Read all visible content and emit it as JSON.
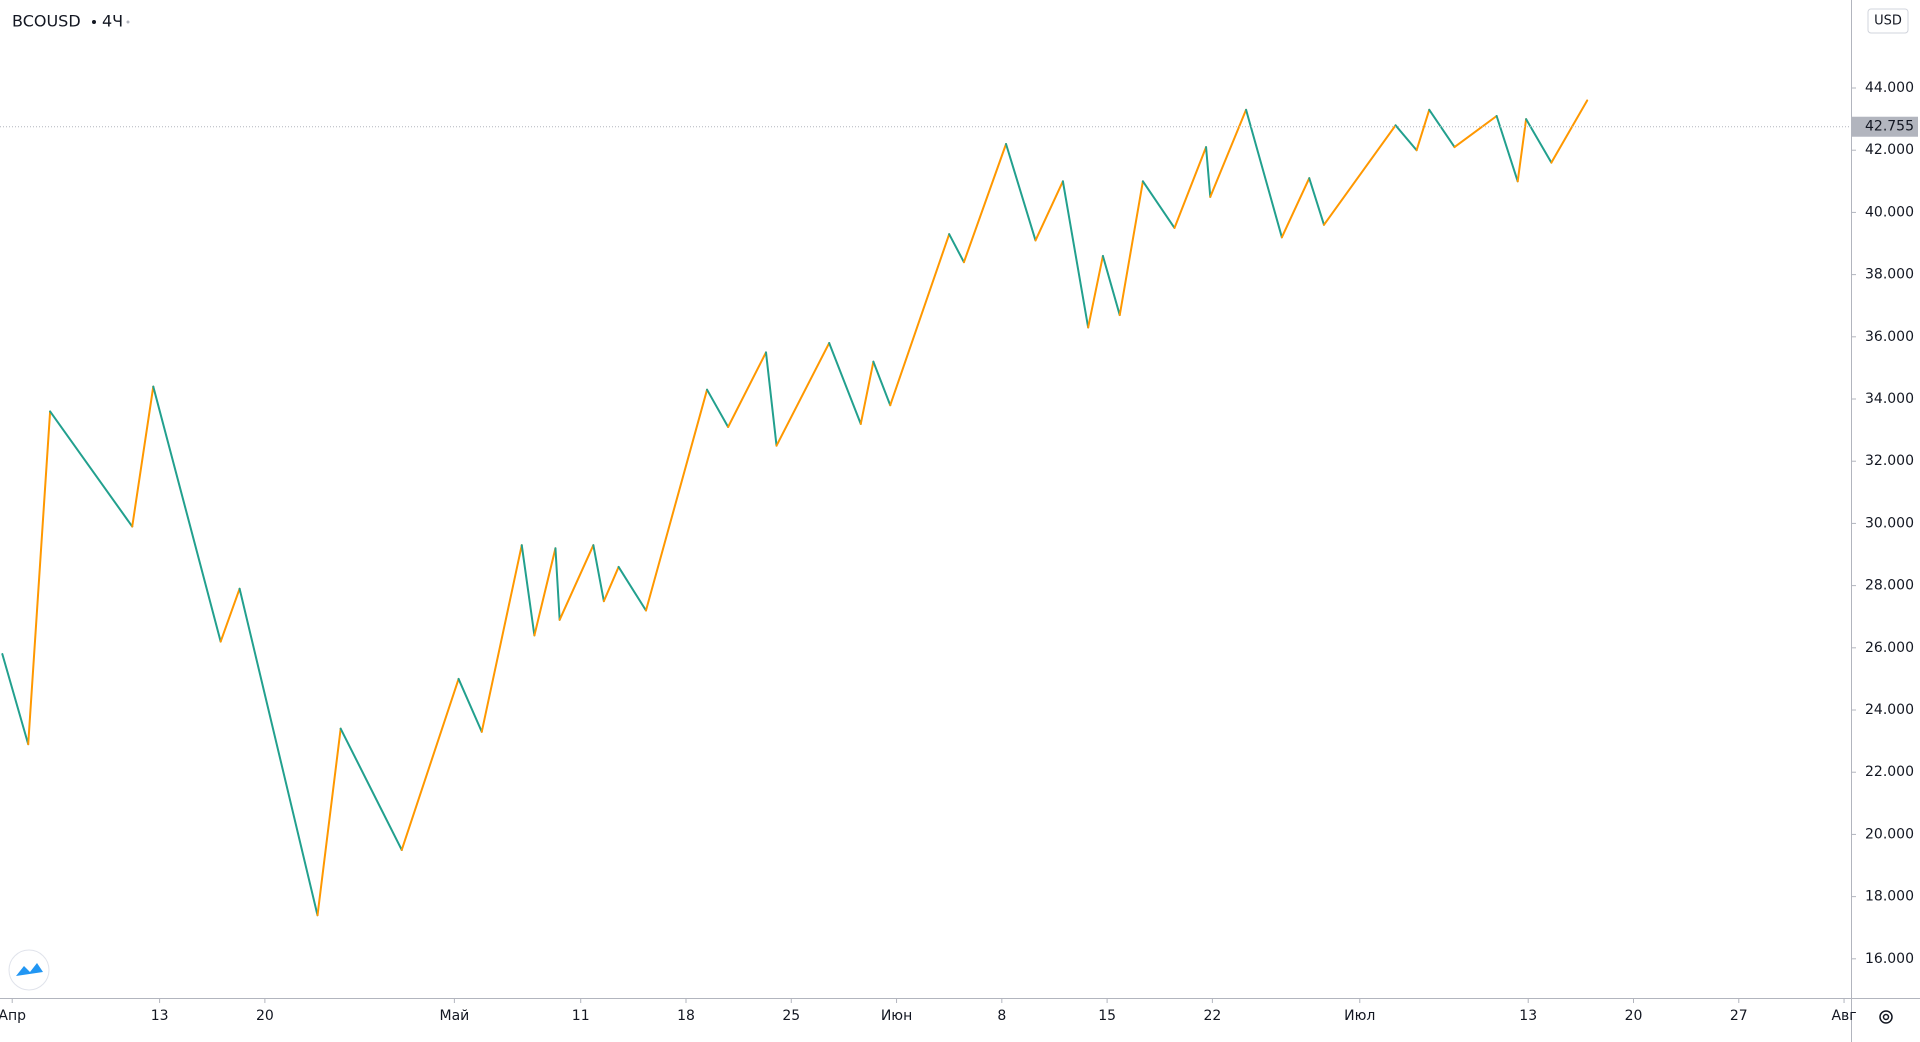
{
  "chart_data": {
    "type": "zigzag",
    "symbol": "BCOUSD",
    "interval": "4Ч",
    "currency": "USD",
    "x": [
      -0.47,
      0.76,
      1.8,
      5.7,
      6.7,
      9.9,
      10.8,
      14.5,
      15.6,
      18.5,
      21.2,
      22.3,
      24.2,
      24.8,
      25.8,
      26.0,
      27.6,
      28.1,
      28.8,
      30.1,
      33.0,
      34.0,
      35.8,
      36.3,
      38.8,
      40.3,
      40.9,
      41.7,
      44.5,
      45.2,
      47.2,
      48.6,
      49.9,
      51.1,
      51.8,
      52.6,
      53.7,
      55.2,
      56.7,
      56.9,
      58.6,
      60.3,
      61.6,
      62.3,
      65.7,
      66.7,
      67.3,
      68.5,
      70.5,
      71.5,
      71.9,
      73.1,
      74.8
    ],
    "values": [
      25.8,
      22.9,
      33.6,
      29.9,
      34.4,
      26.2,
      27.9,
      17.4,
      23.4,
      19.5,
      25.0,
      23.3,
      29.3,
      26.4,
      29.2,
      26.9,
      29.3,
      27.5,
      28.6,
      27.2,
      34.3,
      33.1,
      35.5,
      32.5,
      35.8,
      33.2,
      35.2,
      33.8,
      39.3,
      38.4,
      42.2,
      39.1,
      41.0,
      36.3,
      38.6,
      36.7,
      41.0,
      39.5,
      42.1,
      40.5,
      43.3,
      39.2,
      41.1,
      39.6,
      42.8,
      42.0,
      43.3,
      42.1,
      43.1,
      41.0,
      43.0,
      41.6,
      43.6
    ],
    "up_color": "#ff9800",
    "down_color": "#22a08e",
    "last_price": 42.755,
    "last_price_color": "#b2b5be",
    "xlim": [
      -0.58,
      87.33
    ],
    "xticks": [
      {
        "value": 0,
        "label": "Апр"
      },
      {
        "value": 7,
        "label": "13"
      },
      {
        "value": 12,
        "label": "20"
      },
      {
        "value": 21,
        "label": "Май"
      },
      {
        "value": 27,
        "label": "11"
      },
      {
        "value": 32,
        "label": "18"
      },
      {
        "value": 37,
        "label": "25"
      },
      {
        "value": 42,
        "label": "Июн"
      },
      {
        "value": 47,
        "label": "8"
      },
      {
        "value": 52,
        "label": "15"
      },
      {
        "value": 57,
        "label": "22"
      },
      {
        "value": 64,
        "label": "Июл"
      },
      {
        "value": 72,
        "label": "13"
      },
      {
        "value": 77,
        "label": "20"
      },
      {
        "value": 82,
        "label": "27"
      },
      {
        "value": 87,
        "label": "Авг"
      }
    ],
    "ylim": [
      14.74,
      46.83
    ],
    "yticks": [
      {
        "value": 16,
        "label": "16.000"
      },
      {
        "value": 18,
        "label": "18.000"
      },
      {
        "value": 20,
        "label": "20.000"
      },
      {
        "value": 22,
        "label": "22.000"
      },
      {
        "value": 24,
        "label": "24.000"
      },
      {
        "value": 26,
        "label": "26.000"
      },
      {
        "value": 28,
        "label": "28.000"
      },
      {
        "value": 30,
        "label": "30.000"
      },
      {
        "value": 32,
        "label": "32.000"
      },
      {
        "value": 34,
        "label": "34.000"
      },
      {
        "value": 36,
        "label": "36.000"
      },
      {
        "value": 38,
        "label": "38.000"
      },
      {
        "value": 40,
        "label": "40.000"
      },
      {
        "value": 42,
        "label": "42.000"
      },
      {
        "value": 44,
        "label": "44.000"
      }
    ],
    "grid": false
  }
}
